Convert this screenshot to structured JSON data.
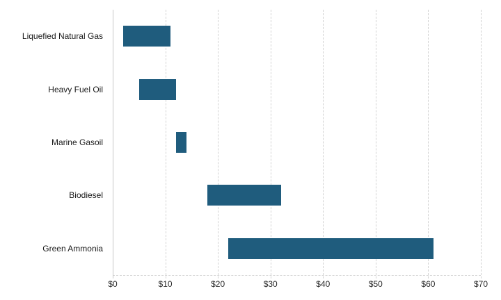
{
  "chart_data": {
    "type": "bar",
    "subtype": "range",
    "orientation": "horizontal",
    "title": "",
    "xlabel": "",
    "ylabel": "",
    "categories": [
      "Liquefied Natural Gas",
      "Heavy Fuel Oil",
      "Marine Gasoil",
      "Biodiesel",
      "Green Ammonia"
    ],
    "ranges": [
      {
        "category": "Liquefied Natural Gas",
        "low": 2,
        "high": 11
      },
      {
        "category": "Heavy Fuel Oil",
        "low": 5,
        "high": 12
      },
      {
        "category": "Marine Gasoil",
        "low": 12,
        "high": 14
      },
      {
        "category": "Biodiesel",
        "low": 18,
        "high": 32
      },
      {
        "category": "Green Ammonia",
        "low": 22,
        "high": 61
      }
    ],
    "xlim": [
      0,
      70
    ],
    "x_ticks": [
      0,
      10,
      20,
      30,
      40,
      50,
      60,
      70
    ],
    "x_tick_labels": [
      "$0",
      "$10",
      "$20",
      "$30",
      "$40",
      "$50",
      "$60",
      "$70"
    ],
    "grid": true,
    "gridline_style": "dashed",
    "legend": "none",
    "colors": {
      "bar": "#1f5c7d",
      "gridline": "#d2d2d2",
      "axis_line": "#cfcfcf",
      "tick_label": "#2b2b2b",
      "category_label": "#1a1a1a",
      "background": "#ffffff"
    }
  }
}
